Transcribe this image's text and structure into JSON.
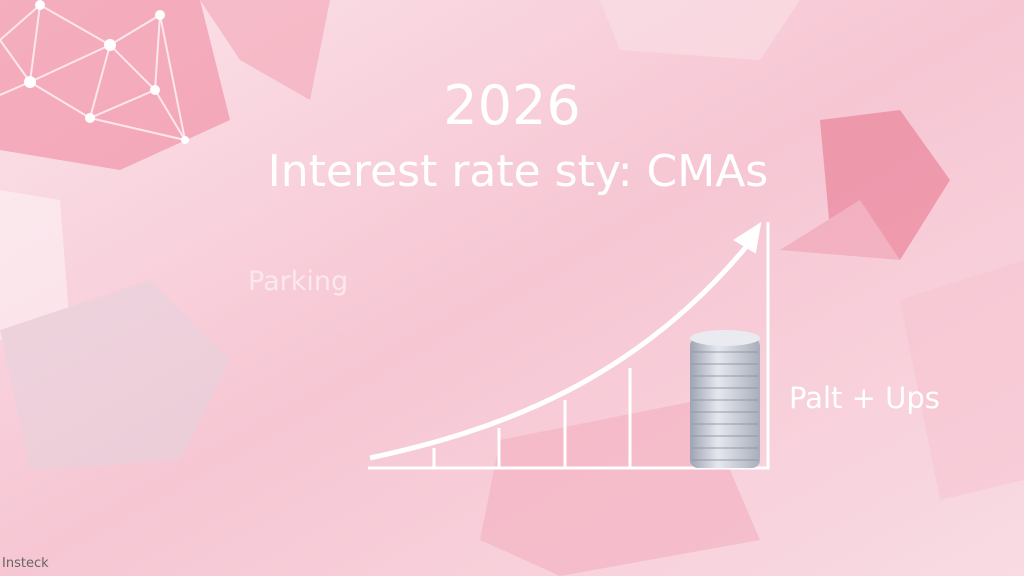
{
  "header": {
    "year": "2026",
    "title": "Interest rate sty: CMAs"
  },
  "labels": {
    "left": "Parking",
    "right": "Palt + Ups"
  },
  "watermark": "Insteck",
  "colors": {
    "background": "#f7d3dc",
    "accent": "#e8667f",
    "line": "#ffffff",
    "coins": "#c8ccd6"
  },
  "icons": [
    "network-graph-icon",
    "growth-arrow-icon",
    "coin-stack-icon"
  ]
}
